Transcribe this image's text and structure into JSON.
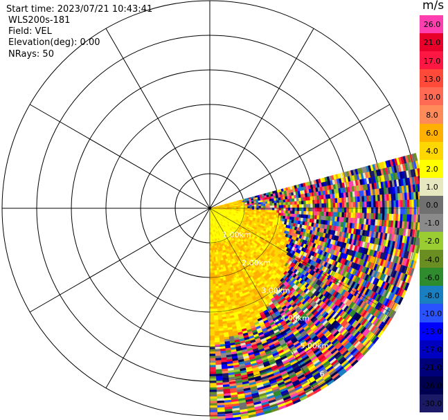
{
  "header": {
    "start_time": "Start time: 2023/07/21 10:43:41",
    "instrument": "WLS200s-181",
    "field": "Field: VEL",
    "elevation": "Elevation(deg): 0.00",
    "nrays": "NRays: 50"
  },
  "chart_data": {
    "type": "heatmap",
    "projection": "polar (PPI)",
    "field": "VEL",
    "elevation_deg": 0.0,
    "n_rays": 50,
    "azimuth_sector_deg": [
      75,
      180
    ],
    "max_range_km": 6,
    "range_rings_km": [
      1,
      2,
      3,
      4,
      5,
      6
    ],
    "range_labels": [
      "1.00km",
      "2.00km",
      "3.00km",
      "4.00km",
      "5.00km",
      "6"
    ],
    "spokes_deg": [
      0,
      30,
      60,
      90,
      120,
      150,
      180,
      210,
      240,
      270,
      300,
      330
    ],
    "colorbar": {
      "unit": "m/s",
      "labels": [
        "26.0",
        "21.0",
        "17.0",
        "13.0",
        "10.0",
        "8.0",
        "6.0",
        "4.0",
        "2.0",
        "1.0",
        "0.0",
        "-1.0",
        "-2.0",
        "-4.0",
        "-6.0",
        "-8.0",
        "-10.0",
        "-13.0",
        "-17.0",
        "-21.0",
        "-26.0",
        "-30.0"
      ],
      "colors": [
        "#ff3fb0",
        "#e8002a",
        "#ff1744",
        "#ff4a3a",
        "#ff6a55",
        "#ff8a5a",
        "#ffb000",
        "#ffd700",
        "#ffff00",
        "#e8e8c0",
        "#707070",
        "#8a8a8a",
        "#9acd32",
        "#6b8e23",
        "#2e8b2e",
        "#1a7fc0",
        "#2a52ff",
        "#0000ff",
        "#0000c0",
        "#00007a",
        "#000050",
        "#1a1a66"
      ]
    }
  }
}
